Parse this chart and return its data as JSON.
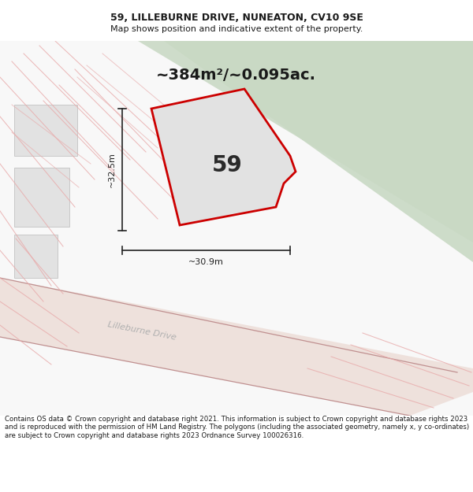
{
  "title": "59, LILLEBURNE DRIVE, NUNEATON, CV10 9SE",
  "subtitle": "Map shows position and indicative extent of the property.",
  "footer": "Contains OS data © Crown copyright and database right 2021. This information is subject to Crown copyright and database rights 2023 and is reproduced with the permission of HM Land Registry. The polygons (including the associated geometry, namely x, y co-ordinates) are subject to Crown copyright and database rights 2023 Ordnance Survey 100026316.",
  "area_label": "~384m²/~0.095ac.",
  "property_label": "59",
  "dim_width": "~30.9m",
  "dim_height": "~32.5m",
  "title_fontsize": 9,
  "subtitle_fontsize": 8,
  "area_fontsize": 14,
  "label_fontsize": 20,
  "dim_fontsize": 8,
  "footer_fontsize": 6.2,
  "map_bg": "#f8f8f8",
  "green_color": "#c9d9c4",
  "property_fill": "#e2e2e2",
  "property_edge": "#cc0000",
  "property_edge_lw": 2.0,
  "dim_color": "#222222",
  "road_fill": "#edddd8",
  "building_fill": "#e2e2e2",
  "building_edge": "#c8c8c8",
  "pink_line_color": "#e8aaaa",
  "road_label_color": "#b0b0b0",
  "text_color": "#1a1a1a"
}
